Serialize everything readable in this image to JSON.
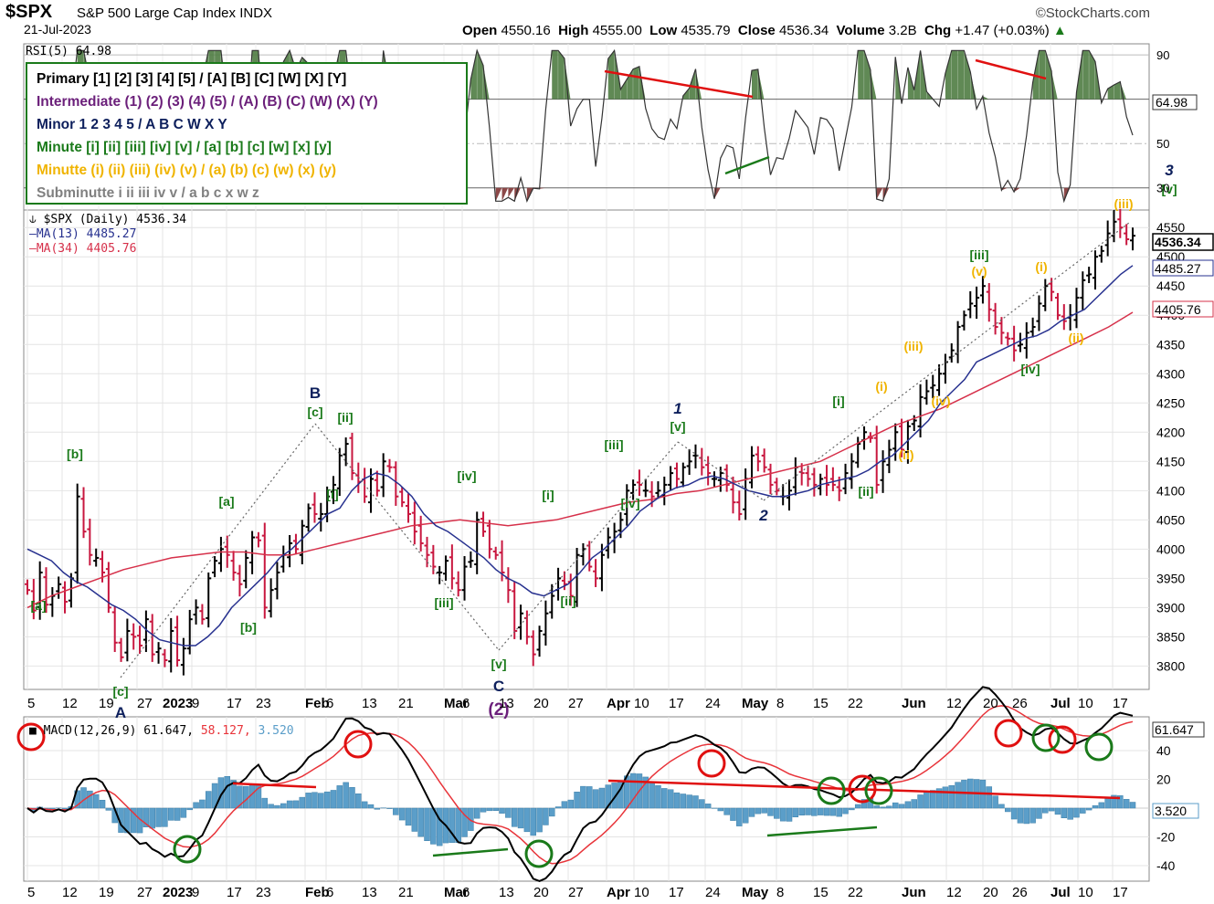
{
  "header": {
    "ticker": "$SPX",
    "name": "S&P 500 Large Cap Index",
    "exchange": "INDX",
    "date": "21-Jul-2023",
    "brand": "©StockCharts.com",
    "open_label": "Open",
    "open": "4550.16",
    "high_label": "High",
    "high": "4555.00",
    "low_label": "Low",
    "low": "4535.79",
    "close_label": "Close",
    "close": "4536.34",
    "volume_label": "Volume",
    "volume": "3.2B",
    "chg_label": "Chg",
    "chg": "+1.47 (+0.03%)"
  },
  "legend": [
    {
      "text": "Primary [1] [2] [3] [4] [5] / [A] [B] [C] [W] [X] [Y]",
      "color": "#000000"
    },
    {
      "text": "Intermediate (1) (2) (3) (4) (5) / (A) (B) (C) (W) (X) (Y)",
      "color": "#6b1f7a"
    },
    {
      "text": "Minor 1 2 3 4 5 / A B C W X Y",
      "color": "#0d1f5c"
    },
    {
      "text": "Minute [i] [ii] [iii] [iv] [v] / [a] [b] [c] [w] [x] [y]",
      "color": "#1a7a1a"
    },
    {
      "text": "Minutte (i) (ii) (iii) (iv) (v) / (a) (b) (c) (w) (x) (y)",
      "color": "#f0b400"
    },
    {
      "text": "Subminutte i ii iii iv v / a b c x w z",
      "color": "#808080"
    }
  ],
  "colors": {
    "up": "#000000",
    "down": "#c8173f",
    "ma13": "#27318f",
    "ma34": "#d6304a",
    "rsi_fill": "#4f7c43",
    "rsi_low_fill": "#8c4848",
    "macd": "#000000",
    "signal": "#e8343a",
    "hist": "#5b9ec9",
    "annot_green": "#1a7a1a",
    "annot_red": "#e01010"
  },
  "panels": {
    "rsi_label": "RSI(5) 64.98",
    "rsi_value": "64.98",
    "price_label": "$SPX (Daily) 4536.34",
    "ma13_label": "MA(13) 4485.27",
    "ma34_label": "MA(34) 4405.76",
    "price_value": "4536.34",
    "ma13_value": "4485.27",
    "ma34_value": "4405.76",
    "macd_label": "MACD(12,26,9) 61.647, 58.127, 3.520",
    "macd_prefix": "MACD(12,26,9)",
    "macd_v1": "61.647,",
    "macd_v2": "58.127,",
    "macd_v3": "3.520",
    "macd_value": "61.647",
    "hist_value": "3.520"
  },
  "chart_data": {
    "type": "ohlc",
    "title": "$SPX (Daily) 4536.34",
    "x_ticks": [
      "5",
      "12",
      "19",
      "27",
      "2023",
      "9",
      "17",
      "23",
      "Feb",
      "6",
      "13",
      "21",
      "Mar",
      "6",
      "13",
      "20",
      "27",
      "Apr",
      "10",
      "17",
      "24",
      "May",
      "8",
      "15",
      "22",
      "Jun",
      "12",
      "20",
      "26",
      "Jul",
      "10",
      "17"
    ],
    "price_y_ticks": [
      3800,
      3850,
      3900,
      3950,
      4000,
      4050,
      4100,
      4150,
      4200,
      4250,
      4300,
      4350,
      4400,
      4450,
      4500,
      4550
    ],
    "price_ylim": [
      3760,
      4580
    ],
    "rsi_y_ticks": [
      30,
      50,
      70,
      90
    ],
    "rsi_ylim": [
      20,
      95
    ],
    "macd_y_ticks": [
      -40,
      -20,
      20,
      40
    ],
    "macd_ylim": [
      -45,
      75
    ],
    "close_series": [
      3930,
      3895,
      3960,
      3905,
      3920,
      3940,
      3910,
      3950,
      4090,
      4030,
      3990,
      3985,
      3960,
      3900,
      3840,
      3815,
      3860,
      3850,
      3835,
      3880,
      3820,
      3830,
      3810,
      3860,
      3810,
      3830,
      3880,
      3900,
      3880,
      3950,
      3980,
      4000,
      3990,
      3960,
      3940,
      3985,
      4020,
      4015,
      3900,
      3930,
      3960,
      3990,
      4010,
      4000,
      4040,
      4070,
      4060,
      4060,
      4090,
      4110,
      4160,
      4180,
      4130,
      4115,
      4090,
      4120,
      4100,
      4150,
      4140,
      4090,
      4080,
      4060,
      4030,
      4010,
      3990,
      3970,
      3960,
      3980,
      3950,
      3930,
      3970,
      3980,
      4050,
      4030,
      4000,
      3990,
      3960,
      3930,
      3860,
      3890,
      3850,
      3820,
      3860,
      3890,
      3920,
      3950,
      3940,
      3920,
      3990,
      4000,
      3970,
      3950,
      3990,
      4020,
      4030,
      4050,
      4100,
      4110,
      4110,
      4100,
      4090,
      4100,
      4110,
      4130,
      4120,
      4140,
      4150,
      4160,
      4140,
      4130,
      4120,
      4130,
      4110,
      4080,
      4060,
      4120,
      4160,
      4150,
      4140,
      4110,
      4100,
      4090,
      4100,
      4140,
      4130,
      4120,
      4110,
      4120,
      4110,
      4110,
      4100,
      4130,
      4150,
      4180,
      4200,
      4190,
      4110,
      4150,
      4170,
      4200,
      4170,
      4210,
      4220,
      4260,
      4270,
      4280,
      4300,
      4320,
      4340,
      4380,
      4400,
      4420,
      4430,
      4450,
      4410,
      4380,
      4370,
      4360,
      4340,
      4350,
      4370,
      4380,
      4420,
      4450,
      4440,
      4400,
      4390,
      4400,
      4430,
      4460,
      4470,
      4500,
      4510,
      4540,
      4560,
      4550,
      4530,
      4536
    ],
    "ma13_series": [
      4000,
      3990,
      3980,
      3960,
      3945,
      3935,
      3920,
      3905,
      3895,
      3880,
      3860,
      3845,
      3840,
      3835,
      3835,
      3850,
      3870,
      3900,
      3920,
      3940,
      3960,
      3985,
      4000,
      4020,
      4040,
      4060,
      4070,
      4100,
      4120,
      4130,
      4125,
      4110,
      4090,
      4060,
      4040,
      4030,
      4015,
      4000,
      3985,
      3965,
      3950,
      3940,
      3925,
      3920,
      3930,
      3940,
      3960,
      3985,
      4000,
      4020,
      4040,
      4065,
      4080,
      4095,
      4105,
      4110,
      4120,
      4125,
      4120,
      4110,
      4100,
      4095,
      4090,
      4090,
      4095,
      4100,
      4110,
      4115,
      4120,
      4125,
      4135,
      4150,
      4160,
      4180,
      4200,
      4220,
      4250,
      4270,
      4290,
      4320,
      4330,
      4340,
      4350,
      4360,
      4365,
      4375,
      4390,
      4400,
      4410,
      4430,
      4450,
      4470,
      4485
    ],
    "ma34_series": [
      3900,
      3920,
      3935,
      3950,
      3965,
      3975,
      3985,
      3990,
      3995,
      3995,
      3990,
      3990,
      4000,
      4010,
      4020,
      4030,
      4040,
      4045,
      4050,
      4045,
      4040,
      4045,
      4050,
      4060,
      4070,
      4080,
      4085,
      4095,
      4100,
      4110,
      4120,
      4130,
      4140,
      4150,
      4170,
      4190,
      4210,
      4225,
      4240,
      4260,
      4280,
      4300,
      4320,
      4340,
      4360,
      4380,
      4405
    ],
    "annotations": [
      {
        "label": "[a]",
        "style": "minute",
        "text": "[a]"
      },
      {
        "label": "[b]",
        "style": "minute",
        "text": "[b]"
      },
      {
        "label": "[c]",
        "style": "minute",
        "text": "[c]"
      },
      {
        "label": "A",
        "style": "minor",
        "text": "A"
      },
      {
        "label": "B",
        "style": "minor",
        "text": "B"
      },
      {
        "label": "C",
        "style": "minor",
        "text": "C"
      },
      {
        "label": "(2)",
        "style": "intermediate",
        "text": "(2)"
      },
      {
        "label": "1",
        "style": "minor",
        "text": "1"
      },
      {
        "label": "2",
        "style": "minor",
        "text": "2"
      },
      {
        "label": "3",
        "style": "minor",
        "text": "3"
      }
    ]
  }
}
